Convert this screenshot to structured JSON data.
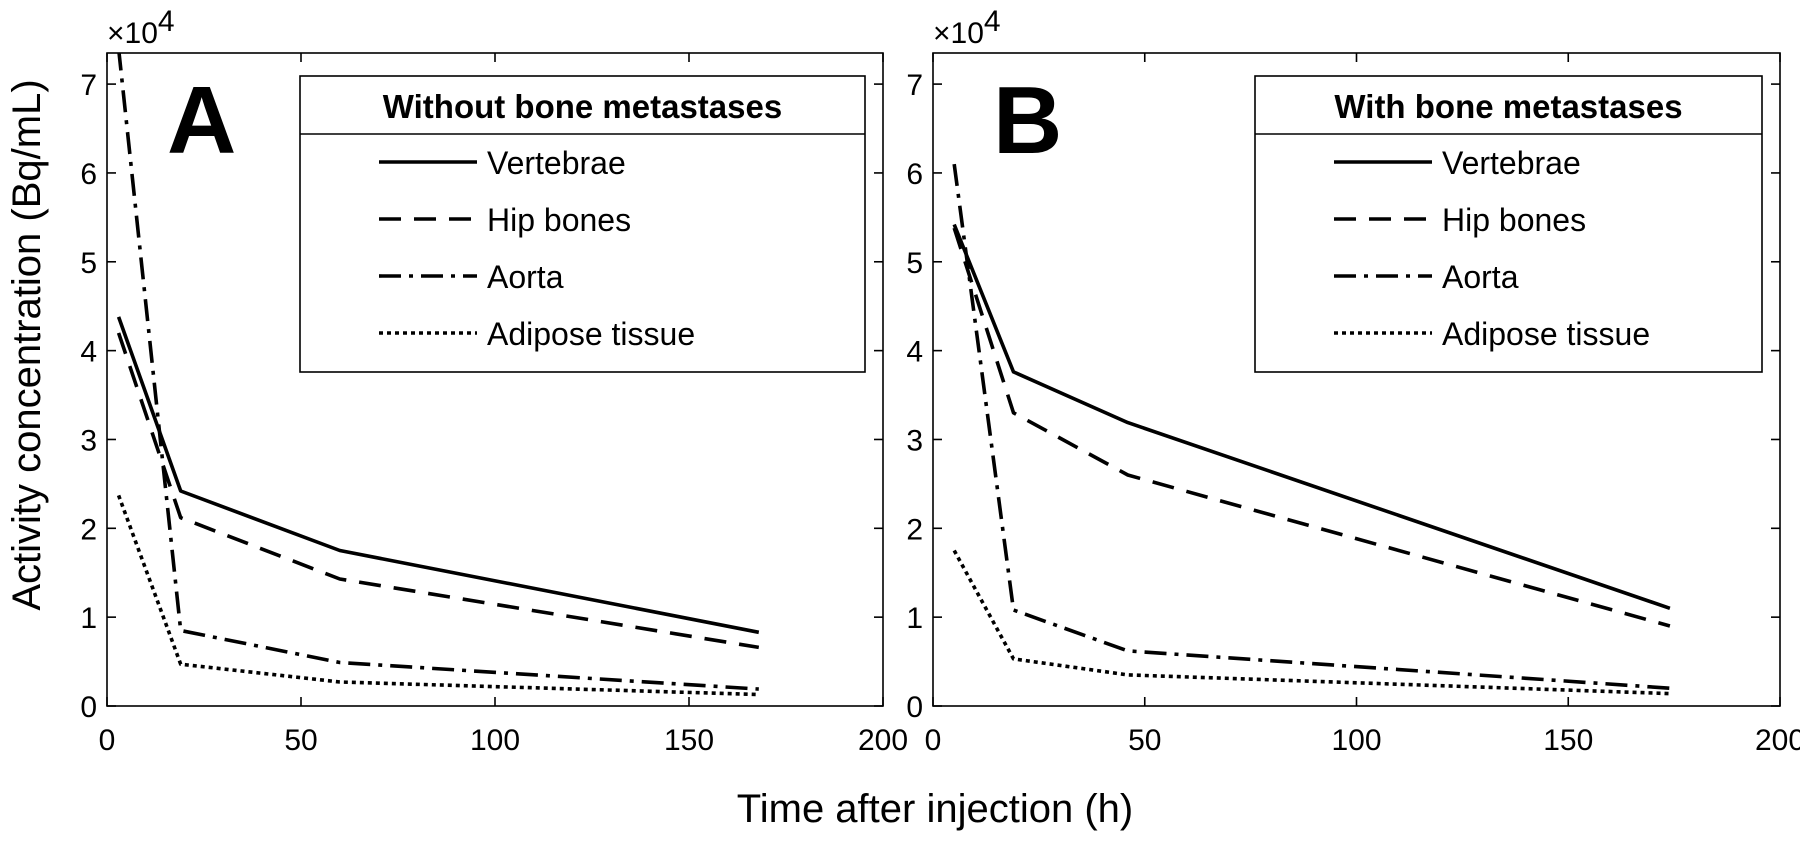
{
  "figure": {
    "xlabel": "Time after injection (h)",
    "ylabel": "Activity concentration (Bq/mL)",
    "multiplier_base": "×10",
    "multiplier_exp": "4"
  },
  "styles": {
    "Vertebrae": "solid",
    "Hip bones": "dashed",
    "Aorta": "dashdot",
    "Adipose tissue": "dotted"
  },
  "chart_data": [
    {
      "type": "line",
      "panel_letter": "A",
      "legend_title": "Without bone metastases",
      "legend_position": "top-right",
      "xlim": [
        0,
        200
      ],
      "ylim": [
        0,
        73500
      ],
      "xticks": [
        0,
        50,
        100,
        150,
        200
      ],
      "yticks": [
        0,
        10000,
        20000,
        30000,
        40000,
        50000,
        60000,
        70000
      ],
      "ytick_labels": [
        "0",
        "1",
        "2",
        "3",
        "4",
        "5",
        "6",
        "7"
      ],
      "grid": false,
      "series": [
        {
          "name": "Vertebrae",
          "x": [
            3,
            19,
            60,
            168
          ],
          "y": [
            43800,
            24200,
            17500,
            8300
          ]
        },
        {
          "name": "Hip bones",
          "x": [
            3,
            19,
            60,
            168
          ],
          "y": [
            42000,
            21200,
            14300,
            6600
          ]
        },
        {
          "name": "Aorta",
          "x": [
            3,
            19,
            60,
            168
          ],
          "y": [
            74000,
            8500,
            4900,
            1900
          ]
        },
        {
          "name": "Adipose tissue",
          "x": [
            3,
            19,
            60,
            168
          ],
          "y": [
            23700,
            4700,
            2700,
            1300
          ]
        }
      ]
    },
    {
      "type": "line",
      "panel_letter": "B",
      "legend_title": "With bone metastases",
      "legend_position": "top-right",
      "xlim": [
        0,
        200
      ],
      "ylim": [
        0,
        73500
      ],
      "xticks": [
        0,
        50,
        100,
        150,
        200
      ],
      "yticks": [
        0,
        10000,
        20000,
        30000,
        40000,
        50000,
        60000,
        70000
      ],
      "ytick_labels": [
        "0",
        "1",
        "2",
        "3",
        "4",
        "5",
        "6",
        "7"
      ],
      "grid": false,
      "series": [
        {
          "name": "Vertebrae",
          "x": [
            5,
            19,
            46,
            174
          ],
          "y": [
            54200,
            37600,
            31900,
            11000
          ]
        },
        {
          "name": "Hip bones",
          "x": [
            5,
            19,
            46,
            174
          ],
          "y": [
            53800,
            33000,
            26000,
            9000
          ]
        },
        {
          "name": "Aorta",
          "x": [
            5,
            19,
            46,
            174
          ],
          "y": [
            61000,
            10800,
            6200,
            2000
          ]
        },
        {
          "name": "Adipose tissue",
          "x": [
            5,
            19,
            46,
            174
          ],
          "y": [
            17500,
            5300,
            3500,
            1400
          ]
        }
      ]
    }
  ]
}
